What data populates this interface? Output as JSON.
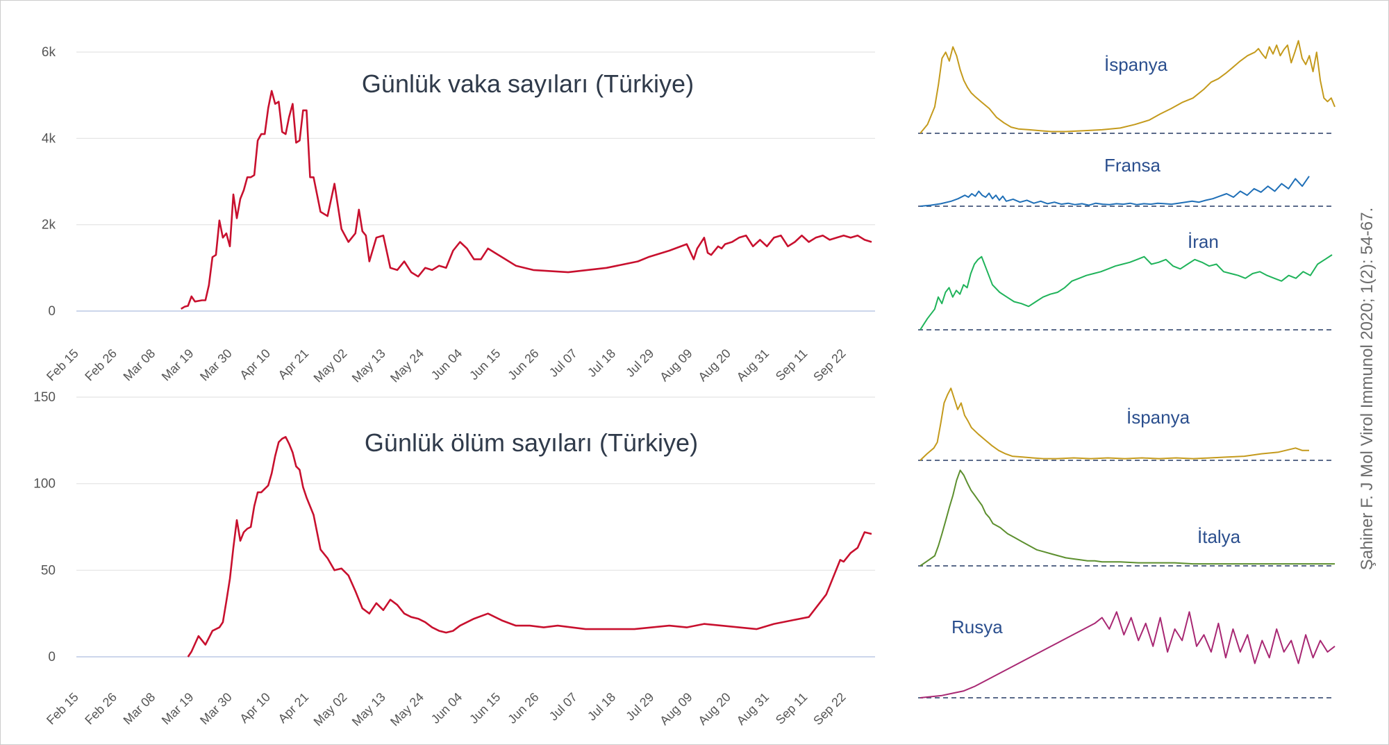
{
  "citation": "Şahiner F. J Mol Virol Immunol 2020; 1(2): 54-67.",
  "colors": {
    "turkey": "#c8102e",
    "spain": "#c49a1c",
    "france": "#1f6fb7",
    "iran": "#1fb35a",
    "italy": "#5c8f2e",
    "russia": "#a82873",
    "gridline": "#e3e3e3",
    "baseline": "#ccd6eb",
    "dashed": "#5a6a8a"
  },
  "chart_data": [
    {
      "type": "line",
      "title": "Günlük vaka sayıları (Türkiye)",
      "xlabel": "",
      "ylabel": "",
      "x_tick_labels": [
        "Feb 15",
        "Feb 26",
        "Mar 08",
        "Mar 19",
        "Mar 30",
        "Apr 10",
        "Apr 21",
        "May 02",
        "May 13",
        "May 24",
        "Jun 04",
        "Jun 15",
        "Jun 26",
        "Jul 07",
        "Jul 18",
        "Jul 29",
        "Aug 09",
        "Aug 20",
        "Aug 31",
        "Sep 11",
        "Sep 22"
      ],
      "y_ticks": [
        0,
        2000,
        4000,
        6000
      ],
      "y_tick_labels": [
        "0",
        "2k",
        "4k",
        "6k"
      ],
      "ylim": [
        0,
        6000
      ],
      "xlim": [
        0,
        229
      ],
      "grid": true,
      "x": [
        30,
        31,
        32,
        33,
        34,
        36,
        37,
        38,
        39,
        40,
        41,
        42,
        43,
        44,
        45,
        46,
        47,
        48,
        49,
        50,
        51,
        52,
        53,
        54,
        55,
        56,
        57,
        58,
        59,
        60,
        61,
        62,
        63,
        64,
        65,
        66,
        67,
        68,
        70,
        72,
        74,
        76,
        78,
        80,
        81,
        82,
        83,
        84,
        86,
        88,
        90,
        92,
        94,
        96,
        98,
        100,
        102,
        104,
        106,
        108,
        110,
        112,
        114,
        116,
        118,
        120,
        123,
        126,
        131,
        141,
        152,
        161,
        164,
        170,
        175,
        177,
        178,
        180,
        181,
        182,
        184,
        185,
        186,
        188,
        190,
        192,
        194,
        196,
        198,
        200,
        202,
        204,
        206,
        208,
        210,
        212,
        214,
        216,
        218,
        220,
        222,
        224,
        226,
        228
      ],
      "y": [
        50,
        100,
        120,
        340,
        220,
        250,
        250,
        600,
        1250,
        1300,
        2100,
        1700,
        1800,
        1500,
        2700,
        2150,
        2600,
        2800,
        3100,
        3100,
        3150,
        3950,
        4100,
        4100,
        4700,
        5100,
        4800,
        4850,
        4150,
        4100,
        4500,
        4800,
        3900,
        3950,
        4650,
        4650,
        3100,
        3100,
        2300,
        2200,
        2950,
        1900,
        1600,
        1800,
        2350,
        1850,
        1750,
        1150,
        1700,
        1750,
        1000,
        950,
        1150,
        900,
        800,
        1000,
        950,
        1050,
        1000,
        1400,
        1600,
        1450,
        1200,
        1200,
        1450,
        1350,
        1200,
        1050,
        950,
        900,
        1000,
        1150,
        1250,
        1400,
        1550,
        1200,
        1450,
        1700,
        1350,
        1300,
        1500,
        1450,
        1550,
        1600,
        1700,
        1750,
        1500,
        1650,
        1500,
        1700,
        1750,
        1500,
        1600,
        1750,
        1600,
        1700,
        1750,
        1650,
        1700,
        1750,
        1700,
        1750,
        1650,
        1600
      ],
      "series": [
        {
          "name": "",
          "color": "#c8102e"
        }
      ]
    },
    {
      "type": "line",
      "title": "Günlük ölüm sayıları (Türkiye)",
      "xlabel": "",
      "ylabel": "",
      "x_tick_labels": [
        "Feb 15",
        "Feb 26",
        "Mar 08",
        "Mar 19",
        "Mar 30",
        "Apr 10",
        "Apr 21",
        "May 02",
        "May 13",
        "May 24",
        "Jun 04",
        "Jun 15",
        "Jun 26",
        "Jul 07",
        "Jul 18",
        "Jul 29",
        "Aug 09",
        "Aug 20",
        "Aug 31",
        "Sep 11",
        "Sep 22"
      ],
      "y_ticks": [
        0,
        50,
        100,
        150
      ],
      "y_tick_labels": [
        "0",
        "50",
        "100",
        "150"
      ],
      "ylim": [
        0,
        150
      ],
      "xlim": [
        0,
        229
      ],
      "grid": true,
      "x": [
        32,
        33,
        35,
        37,
        39,
        41,
        42,
        43,
        44,
        45,
        46,
        47,
        48,
        49,
        50,
        51,
        52,
        53,
        54,
        55,
        56,
        57,
        58,
        59,
        60,
        61,
        62,
        63,
        64,
        65,
        66,
        68,
        70,
        72,
        74,
        76,
        78,
        80,
        82,
        84,
        86,
        88,
        90,
        92,
        94,
        96,
        98,
        100,
        102,
        104,
        106,
        108,
        110,
        114,
        118,
        122,
        126,
        130,
        134,
        138,
        142,
        146,
        150,
        155,
        160,
        165,
        170,
        175,
        180,
        185,
        190,
        195,
        200,
        205,
        210,
        215,
        219,
        220,
        222,
        224,
        226,
        228
      ],
      "y": [
        0,
        3,
        12,
        7,
        15,
        17,
        20,
        32,
        45,
        63,
        79,
        67,
        72,
        74,
        75,
        87,
        95,
        95,
        97,
        99,
        106,
        116,
        124,
        126,
        127,
        123,
        118,
        110,
        108,
        98,
        92,
        82,
        62,
        57,
        50,
        51,
        47,
        38,
        28,
        25,
        31,
        27,
        33,
        30,
        25,
        23,
        22,
        20,
        17,
        15,
        14,
        15,
        18,
        22,
        25,
        21,
        18,
        18,
        17,
        18,
        17,
        16,
        16,
        16,
        16,
        17,
        18,
        17,
        19,
        18,
        17,
        16,
        19,
        21,
        23,
        36,
        56,
        55,
        60,
        63,
        72,
        71
      ],
      "series": [
        {
          "name": "",
          "color": "#c8102e"
        }
      ]
    },
    {
      "type": "line",
      "title": "",
      "label": "İspanya",
      "color": "#c49a1c",
      "ylim": [
        0,
        100
      ],
      "x": [
        0,
        4,
        8,
        10,
        12,
        14,
        16,
        18,
        20,
        22,
        24,
        26,
        28,
        30,
        34,
        38,
        42,
        46,
        50,
        54,
        60,
        66,
        72,
        80,
        90,
        100,
        110,
        118,
        126,
        132,
        138,
        144,
        150,
        156,
        160,
        164,
        168,
        172,
        176,
        180,
        184,
        186,
        188,
        190,
        192,
        194,
        196,
        198,
        200,
        202,
        204,
        206,
        208,
        210,
        212,
        214,
        216,
        218,
        220,
        222,
        224,
        226,
        228
      ],
      "y": [
        0,
        10,
        30,
        55,
        85,
        92,
        82,
        98,
        88,
        72,
        60,
        52,
        46,
        42,
        35,
        28,
        18,
        12,
        7,
        5,
        4,
        3,
        2,
        2,
        3,
        4,
        6,
        10,
        15,
        22,
        28,
        35,
        40,
        50,
        58,
        62,
        68,
        75,
        82,
        88,
        92,
        96,
        90,
        85,
        98,
        90,
        100,
        88,
        95,
        100,
        80,
        92,
        105,
        85,
        78,
        88,
        70,
        92,
        60,
        40,
        36,
        40,
        30
      ],
      "series": [
        {
          "name": "İspanya",
          "color": "#c49a1c"
        }
      ]
    },
    {
      "type": "line",
      "title": "",
      "label": "Fransa",
      "color": "#1f6fb7",
      "ylim": [
        0,
        100
      ],
      "x": [
        0,
        6,
        12,
        18,
        22,
        26,
        28,
        30,
        32,
        34,
        36,
        38,
        40,
        42,
        44,
        46,
        48,
        50,
        54,
        58,
        62,
        66,
        70,
        74,
        78,
        82,
        86,
        90,
        94,
        98,
        102,
        106,
        110,
        114,
        118,
        122,
        126,
        130,
        134,
        138,
        142,
        146,
        150,
        154,
        158,
        162,
        166,
        170,
        174,
        178,
        182,
        186,
        190,
        194,
        198,
        202,
        206,
        210,
        214,
        218,
        222,
        226
      ],
      "y": [
        0,
        2,
        5,
        10,
        15,
        22,
        18,
        25,
        20,
        30,
        22,
        18,
        26,
        15,
        22,
        12,
        20,
        10,
        14,
        8,
        12,
        6,
        10,
        5,
        8,
        4,
        6,
        3,
        5,
        2,
        6,
        4,
        3,
        5,
        4,
        6,
        3,
        5,
        4,
        6,
        5,
        4,
        6,
        8,
        10,
        8,
        12,
        15,
        20,
        25,
        18,
        30,
        22,
        35,
        28,
        40,
        30,
        45,
        35,
        55,
        40,
        60
      ]
    },
    {
      "type": "line",
      "title": "",
      "label": "İran",
      "color": "#1fb35a",
      "ylim": [
        0,
        100
      ],
      "x": [
        0,
        4,
        8,
        10,
        12,
        14,
        16,
        18,
        20,
        22,
        24,
        26,
        28,
        30,
        32,
        34,
        36,
        38,
        40,
        44,
        48,
        52,
        56,
        60,
        64,
        68,
        72,
        76,
        80,
        84,
        88,
        92,
        96,
        100,
        104,
        108,
        112,
        116,
        120,
        124,
        128,
        132,
        136,
        140,
        144,
        148,
        152,
        156,
        160,
        164,
        168,
        172,
        176,
        180,
        184,
        188,
        192,
        196,
        200,
        204,
        208,
        212,
        216,
        220,
        224,
        228
      ],
      "y": [
        0,
        12,
        22,
        35,
        28,
        40,
        45,
        35,
        42,
        38,
        48,
        45,
        60,
        70,
        75,
        78,
        68,
        58,
        48,
        40,
        35,
        30,
        28,
        25,
        30,
        35,
        38,
        40,
        45,
        52,
        55,
        58,
        60,
        62,
        65,
        68,
        70,
        72,
        75,
        78,
        70,
        72,
        75,
        68,
        65,
        70,
        75,
        72,
        68,
        70,
        62,
        60,
        58,
        55,
        60,
        62,
        58,
        55,
        52,
        58,
        55,
        62,
        58,
        70,
        75,
        80
      ]
    },
    {
      "type": "line",
      "title": "",
      "label": "İspanya",
      "color": "#c49a1c",
      "ylim": [
        0,
        100
      ],
      "x": [
        0,
        4,
        8,
        10,
        12,
        14,
        16,
        18,
        20,
        22,
        24,
        26,
        28,
        30,
        34,
        38,
        42,
        46,
        50,
        54,
        60,
        66,
        72,
        80,
        90,
        100,
        110,
        120,
        130,
        140,
        150,
        160,
        170,
        180,
        190,
        200,
        210,
        220,
        224,
        228
      ],
      "y": [
        0,
        8,
        15,
        22,
        45,
        70,
        80,
        88,
        75,
        62,
        70,
        55,
        48,
        40,
        32,
        25,
        18,
        12,
        8,
        5,
        4,
        3,
        2,
        2,
        3,
        2,
        3,
        2,
        3,
        2,
        3,
        2,
        3,
        4,
        5,
        8,
        10,
        15,
        12,
        12
      ]
    },
    {
      "type": "line",
      "title": "",
      "label": "İtalya",
      "color": "#5c8f2e",
      "ylim": [
        0,
        100
      ],
      "x": [
        0,
        4,
        8,
        10,
        12,
        14,
        16,
        18,
        20,
        22,
        24,
        26,
        28,
        30,
        32,
        34,
        36,
        38,
        40,
        44,
        48,
        52,
        56,
        60,
        64,
        68,
        72,
        76,
        80,
        84,
        88,
        92,
        96,
        100,
        110,
        120,
        130,
        140,
        150,
        160,
        170,
        180,
        190,
        200,
        210,
        220,
        228
      ],
      "y": [
        0,
        5,
        10,
        20,
        32,
        45,
        58,
        70,
        85,
        95,
        90,
        82,
        75,
        70,
        65,
        60,
        52,
        48,
        42,
        38,
        32,
        28,
        24,
        20,
        16,
        14,
        12,
        10,
        8,
        7,
        6,
        5,
        5,
        4,
        4,
        3,
        3,
        3,
        2,
        2,
        2,
        2,
        2,
        2,
        2,
        2,
        2
      ]
    },
    {
      "type": "line",
      "title": "",
      "label": "Rusya",
      "color": "#a82873",
      "ylim": [
        0,
        100
      ],
      "x": [
        0,
        6,
        12,
        18,
        24,
        30,
        36,
        42,
        48,
        54,
        60,
        66,
        72,
        78,
        84,
        90,
        96,
        100,
        104,
        108,
        112,
        116,
        120,
        124,
        128,
        132,
        136,
        140,
        144,
        148,
        152,
        156,
        160,
        164,
        168,
        172,
        176,
        180,
        184,
        188,
        192,
        196,
        200,
        204,
        208,
        212,
        216,
        220,
        224,
        228
      ],
      "y": [
        0,
        1,
        2,
        4,
        6,
        10,
        15,
        20,
        25,
        30,
        35,
        40,
        45,
        50,
        55,
        60,
        65,
        70,
        60,
        75,
        55,
        70,
        50,
        65,
        45,
        70,
        40,
        60,
        50,
        75,
        45,
        55,
        40,
        65,
        35,
        60,
        40,
        55,
        30,
        50,
        35,
        60,
        40,
        50,
        30,
        55,
        35,
        50,
        40,
        45
      ]
    }
  ]
}
